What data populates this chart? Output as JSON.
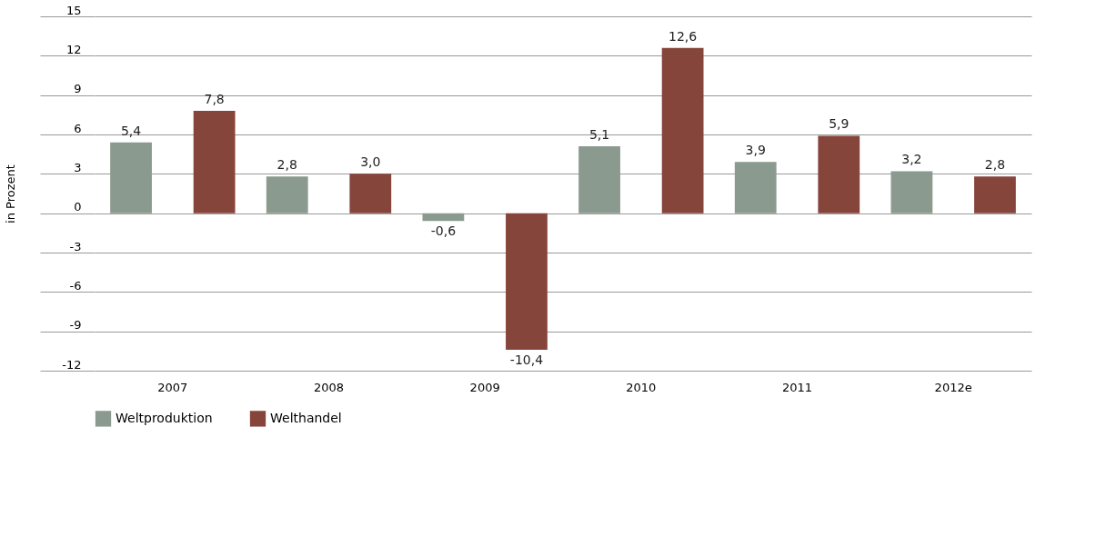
{
  "chart_data": {
    "type": "bar",
    "ylabel": "in Prozent",
    "categories": [
      "2007",
      "2008",
      "2009",
      "2010",
      "2011",
      "2012e"
    ],
    "series": [
      {
        "name": "Weltproduktion",
        "color": "#8b9a8e",
        "values": [
          5.4,
          2.8,
          -0.6,
          5.1,
          3.9,
          3.2
        ],
        "value_labels": [
          "5,4",
          "2,8",
          "-0,6",
          "5,1",
          "3,9",
          "3,2"
        ]
      },
      {
        "name": "Welthandel",
        "color": "#86453b",
        "values": [
          7.8,
          3.0,
          -10.4,
          12.6,
          5.9,
          2.8
        ],
        "value_labels": [
          "7,8",
          "3,0",
          "-10,4",
          "12,6",
          "5,9",
          "2,8"
        ]
      }
    ],
    "ylim": [
      -12,
      15
    ],
    "yticks": [
      -12,
      -9,
      -6,
      -3,
      0,
      3,
      6,
      9,
      12,
      15
    ],
    "grid": "y",
    "legend": "bottom"
  }
}
